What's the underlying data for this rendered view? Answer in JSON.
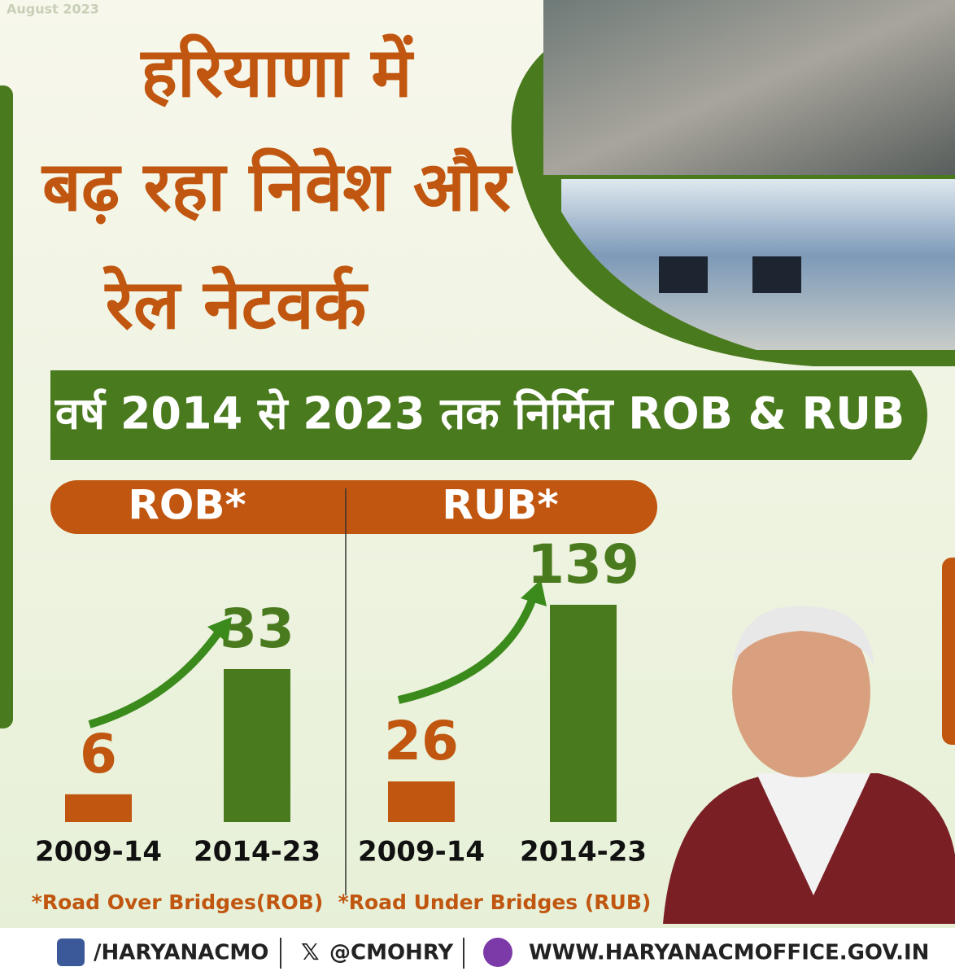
{
  "date": "August 2023",
  "title_lines": [
    "हरियाणा में",
    "बढ़ रहा निवेश और",
    "रेल नेटवर्क"
  ],
  "subtitle": "वर्ष 2014 से 2023 तक निर्मित ROB & RUB",
  "chart_data": [
    {
      "type": "bar",
      "title": "ROB*",
      "categories": [
        "2009-14",
        "2014-23"
      ],
      "values": [
        6,
        33
      ],
      "colors": [
        "#c0560f",
        "#4a7a1e"
      ],
      "note": "*Road Over Bridges(ROB)"
    },
    {
      "type": "bar",
      "title": "RUB*",
      "categories": [
        "2009-14",
        "2014-23"
      ],
      "values": [
        26,
        139
      ],
      "colors": [
        "#c0560f",
        "#4a7a1e"
      ],
      "note": "*Road Under Bridges (RUB)"
    }
  ],
  "footer": {
    "facebook": "/HARYANACMO",
    "x": "@CMOHRY",
    "website": "WWW.HARYANACMOFFICE.GOV.IN"
  }
}
